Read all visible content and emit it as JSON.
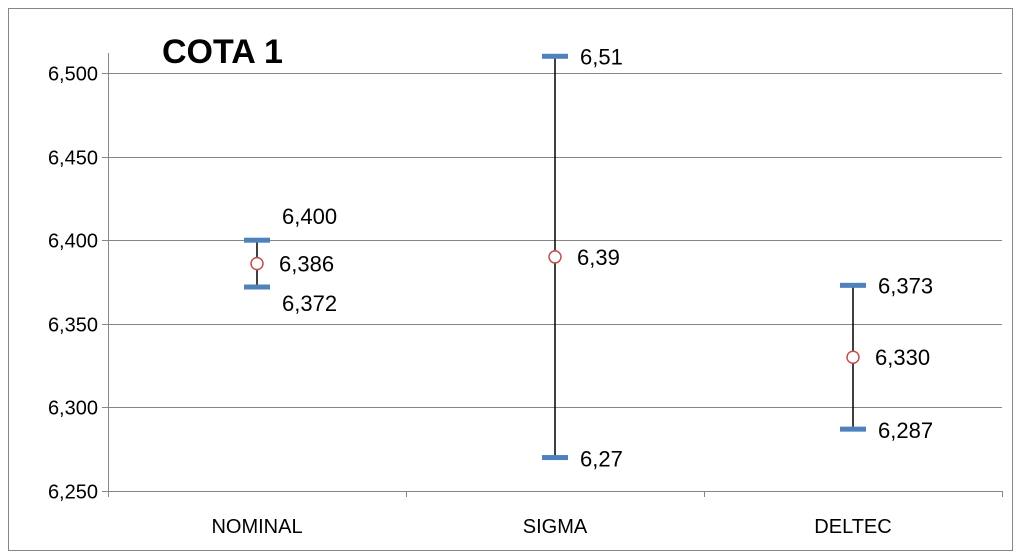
{
  "chart_data": {
    "type": "error-bar",
    "title": "COTA 1",
    "ylim": [
      6.25,
      6.5
    ],
    "y_ticks": [
      "6,250",
      "6,300",
      "6,350",
      "6,400",
      "6,450",
      "6,500"
    ],
    "y_tick_values": [
      6.25,
      6.3,
      6.35,
      6.4,
      6.45,
      6.5
    ],
    "grid": true,
    "categories": [
      "NOMINAL",
      "SIGMA",
      "DELTEC"
    ],
    "points": [
      {
        "category": "NOMINAL",
        "max": 6.4,
        "mid": 6.386,
        "min": 6.372,
        "max_label": "6,400",
        "mid_label": "6,386",
        "min_label": "6,372"
      },
      {
        "category": "SIGMA",
        "max": 6.51,
        "mid": 6.39,
        "min": 6.27,
        "max_label": "6,51",
        "mid_label": "6,39",
        "min_label": "6,27"
      },
      {
        "category": "DELTEC",
        "max": 6.373,
        "mid": 6.33,
        "min": 6.287,
        "max_label": "6,373",
        "mid_label": "6,330",
        "min_label": "6,287"
      }
    ],
    "colors": {
      "cap": "#4f81bd",
      "marker": "#c0504d",
      "whisker": "#000000",
      "grid": "#868686",
      "axis": "#868686"
    }
  }
}
